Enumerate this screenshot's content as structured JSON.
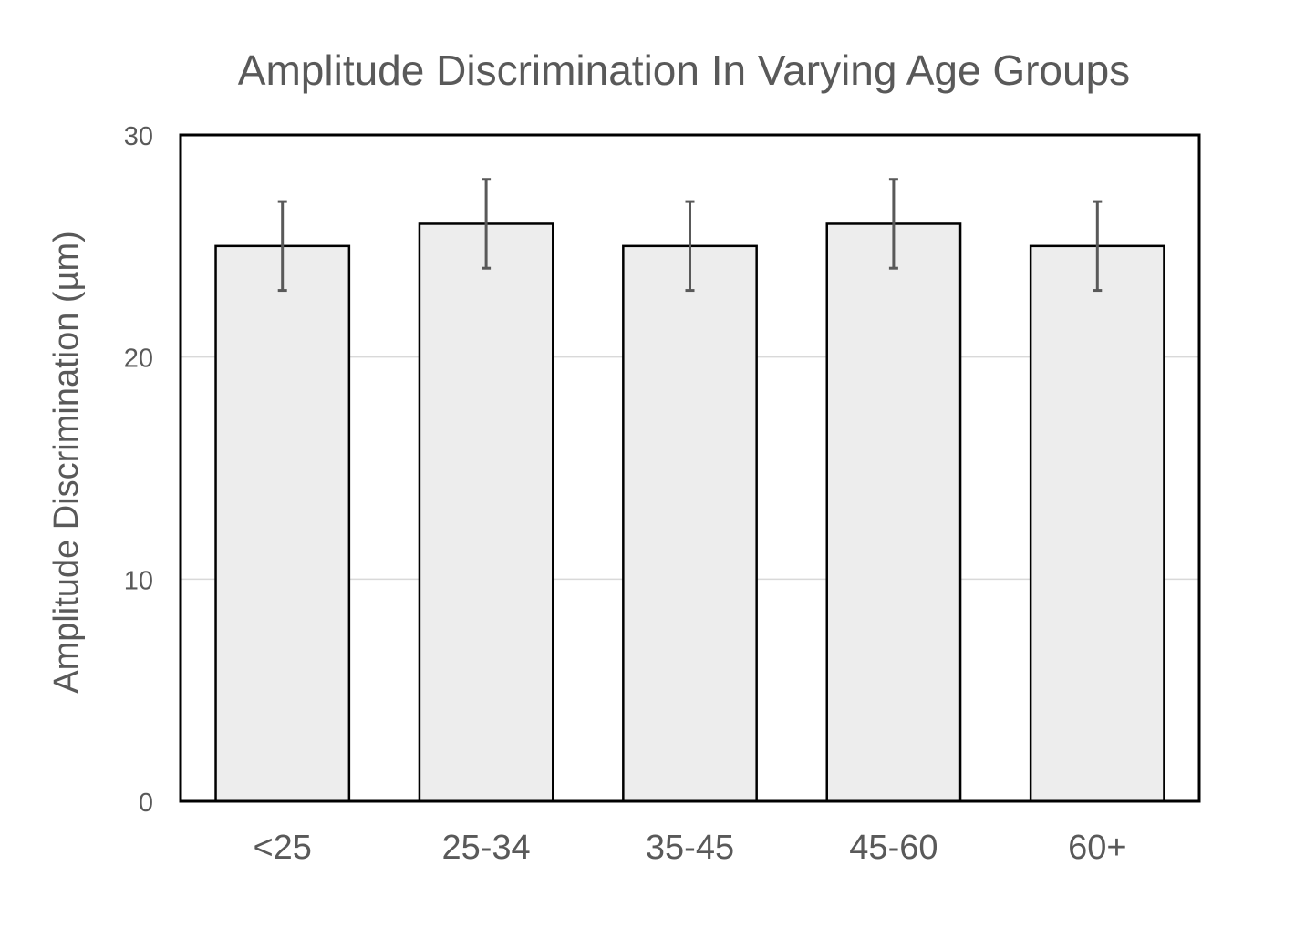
{
  "chart_data": {
    "type": "bar",
    "title": "Amplitude Discrimination In Varying Age Groups",
    "xlabel": "",
    "ylabel": "Amplitude Discrimination (µm)",
    "categories": [
      "<25",
      "25-34",
      "35-45",
      "45-60",
      "60+"
    ],
    "values": [
      25,
      26,
      25,
      26,
      25
    ],
    "error": [
      2,
      2,
      2,
      2,
      2
    ],
    "ylim": [
      0,
      30
    ],
    "yticks": [
      0,
      10,
      20,
      30
    ],
    "grid": true,
    "legend": "none",
    "colors": {
      "bar_fill": "#ededed",
      "bar_stroke": "#000000",
      "error_bar": "#595959",
      "gridline": "#d9d9d9",
      "text": "#595959",
      "frame": "#000000"
    }
  }
}
